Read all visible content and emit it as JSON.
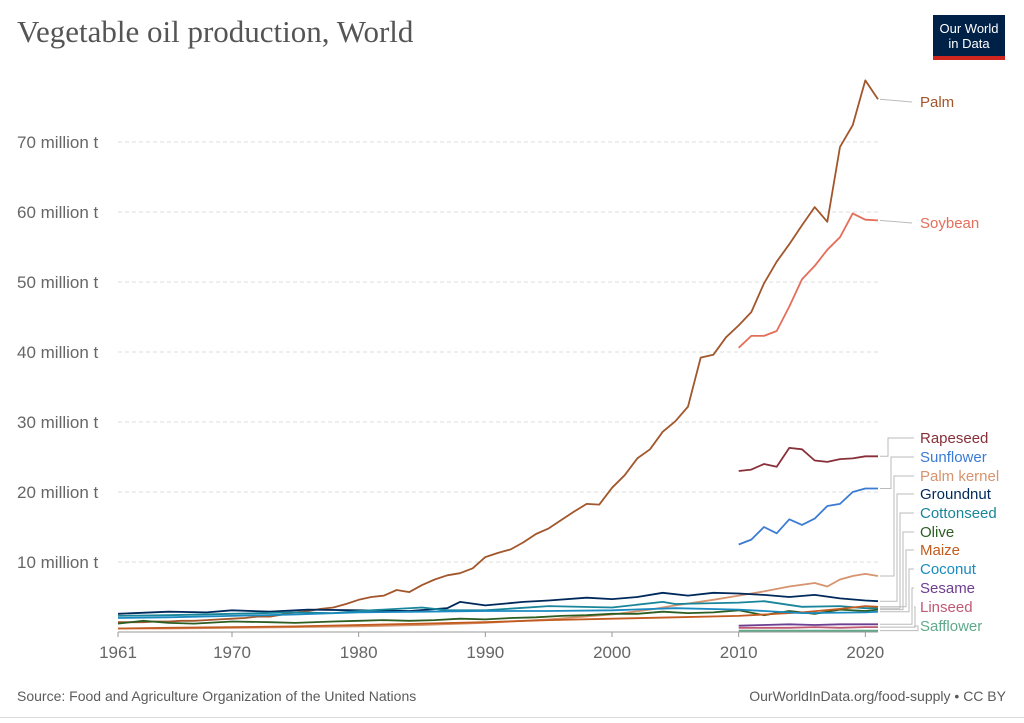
{
  "title": "Vegetable oil production, World",
  "logo": {
    "line1": "Our World",
    "line2": "in Data"
  },
  "source": "Source: Food and Agriculture Organization of the United Nations",
  "credit": "OurWorldInData.org/food-supply • CC BY",
  "chart_data": {
    "type": "line",
    "title": "Vegetable oil production, World",
    "xlim": [
      1961,
      2021
    ],
    "ylim": [
      0,
      80
    ],
    "unit": "million t",
    "x_ticks": [
      1961,
      1970,
      1980,
      1990,
      2000,
      2010,
      2020
    ],
    "y_ticks": [
      {
        "value": 10,
        "label": "10 million t"
      },
      {
        "value": 20,
        "label": "20 million t"
      },
      {
        "value": 30,
        "label": "30 million t"
      },
      {
        "value": 40,
        "label": "40 million t"
      },
      {
        "value": 50,
        "label": "50 million t"
      },
      {
        "value": 60,
        "label": "60 million t"
      },
      {
        "value": 70,
        "label": "70 million t"
      }
    ],
    "grid": true,
    "legend": "right",
    "series": [
      {
        "name": "Palm",
        "color": "#a2562c",
        "x": [
          1961,
          1962,
          1963,
          1964,
          1965,
          1966,
          1967,
          1968,
          1969,
          1970,
          1971,
          1972,
          1973,
          1974,
          1975,
          1976,
          1977,
          1978,
          1979,
          1980,
          1981,
          1982,
          1983,
          1984,
          1985,
          1986,
          1987,
          1988,
          1989,
          1990,
          1991,
          1992,
          1993,
          1994,
          1995,
          1996,
          1997,
          1998,
          1999,
          2000,
          2001,
          2002,
          2003,
          2004,
          2005,
          2006,
          2007,
          2008,
          2009,
          2010,
          2011,
          2012,
          2013,
          2014,
          2015,
          2016,
          2017,
          2018,
          2019,
          2020,
          2021
        ],
        "y": [
          1.4,
          1.4,
          1.4,
          1.5,
          1.5,
          1.6,
          1.6,
          1.7,
          1.8,
          1.9,
          2.0,
          2.2,
          2.2,
          2.5,
          2.8,
          3.0,
          3.3,
          3.5,
          4.0,
          4.6,
          5.0,
          5.2,
          6.0,
          5.7,
          6.7,
          7.5,
          8.1,
          8.4,
          9.1,
          10.7,
          11.3,
          11.8,
          12.8,
          14.0,
          14.8,
          16.0,
          17.2,
          18.3,
          18.2,
          20.6,
          22.4,
          24.8,
          26.1,
          28.6,
          30.1,
          32.2,
          39.2,
          39.6,
          42.1,
          43.8,
          45.7,
          49.8,
          52.9,
          55.4,
          58.1,
          60.7,
          58.6,
          69.3,
          72.4,
          78.8,
          76.1
        ]
      },
      {
        "name": "Soybean",
        "color": "#e56e5a",
        "x": [
          2010,
          2011,
          2012,
          2013,
          2014,
          2015,
          2016,
          2017,
          2018,
          2019,
          2020,
          2021
        ],
        "y": [
          40.6,
          42.3,
          42.3,
          43.0,
          46.5,
          50.4,
          52.3,
          54.6,
          56.4,
          59.8,
          58.9,
          58.8
        ]
      },
      {
        "name": "Rapeseed",
        "color": "#883039",
        "x": [
          2010,
          2011,
          2012,
          2013,
          2014,
          2015,
          2016,
          2017,
          2018,
          2019,
          2020,
          2021
        ],
        "y": [
          23.0,
          23.2,
          24.0,
          23.6,
          26.3,
          26.1,
          24.5,
          24.3,
          24.7,
          24.8,
          25.1,
          25.1
        ]
      },
      {
        "name": "Sunflower",
        "color": "#3a7bd5",
        "x": [
          2010,
          2011,
          2012,
          2013,
          2014,
          2015,
          2016,
          2017,
          2018,
          2019,
          2020,
          2021
        ],
        "y": [
          12.5,
          13.2,
          15.0,
          14.1,
          16.1,
          15.3,
          16.2,
          18.0,
          18.3,
          20.0,
          20.5,
          20.5
        ]
      },
      {
        "name": "Palm kernel",
        "color": "#d6936d",
        "x": [
          1961,
          1965,
          1970,
          1975,
          1980,
          1985,
          1990,
          1995,
          2000,
          2003,
          2005,
          2008,
          2010,
          2012,
          2014,
          2016,
          2017,
          2018,
          2019,
          2020,
          2021
        ],
        "y": [
          0.5,
          0.5,
          0.6,
          0.7,
          0.8,
          1.0,
          1.3,
          1.8,
          2.5,
          3.2,
          3.8,
          4.6,
          5.2,
          5.8,
          6.5,
          7.0,
          6.5,
          7.5,
          8.0,
          8.3,
          8.0
        ]
      },
      {
        "name": "Groundnut",
        "color": "#00295b",
        "x": [
          1961,
          1965,
          1968,
          1970,
          1973,
          1976,
          1980,
          1984,
          1987,
          1988,
          1990,
          1993,
          1995,
          1998,
          2000,
          2002,
          2004,
          2006,
          2008,
          2010,
          2012,
          2014,
          2016,
          2018,
          2020,
          2021
        ],
        "y": [
          2.6,
          2.9,
          2.8,
          3.1,
          2.9,
          3.2,
          3.1,
          3.0,
          3.4,
          4.3,
          3.8,
          4.3,
          4.5,
          4.9,
          4.7,
          5.0,
          5.6,
          5.2,
          5.6,
          5.5,
          5.3,
          5.0,
          5.3,
          4.8,
          4.5,
          4.4
        ]
      },
      {
        "name": "Cottonseed",
        "color": "#18859a",
        "x": [
          1961,
          1965,
          1970,
          1975,
          1978,
          1980,
          1985,
          1987,
          1990,
          1995,
          2000,
          2004,
          2005,
          2010,
          2012,
          2015,
          2018,
          2020,
          2021
        ],
        "y": [
          2.3,
          2.4,
          2.6,
          2.8,
          2.7,
          3.0,
          3.5,
          3.1,
          3.1,
          3.7,
          3.5,
          4.3,
          4.0,
          4.2,
          4.4,
          3.6,
          3.7,
          3.4,
          3.4
        ]
      },
      {
        "name": "Olive",
        "color": "#2c5d21",
        "x": [
          1961,
          1963,
          1965,
          1967,
          1970,
          1973,
          1975,
          1978,
          1980,
          1982,
          1984,
          1986,
          1988,
          1990,
          1992,
          1994,
          1996,
          1998,
          2000,
          2002,
          2004,
          2006,
          2008,
          2010,
          2012,
          2014,
          2016,
          2018,
          2020,
          2021
        ],
        "y": [
          1.2,
          1.6,
          1.3,
          1.2,
          1.5,
          1.4,
          1.3,
          1.5,
          1.6,
          1.7,
          1.6,
          1.7,
          1.9,
          1.8,
          2.0,
          2.1,
          2.3,
          2.4,
          2.6,
          2.6,
          2.9,
          2.7,
          2.8,
          3.1,
          2.4,
          3.0,
          2.6,
          3.2,
          3.0,
          3.2
        ]
      },
      {
        "name": "Maize",
        "color": "#c15b1f",
        "x": [
          1961,
          1965,
          1970,
          1975,
          1980,
          1985,
          1990,
          1995,
          2000,
          2005,
          2010,
          2015,
          2018,
          2020,
          2021
        ],
        "y": [
          0.5,
          0.6,
          0.7,
          0.8,
          1.0,
          1.2,
          1.4,
          1.7,
          1.9,
          2.1,
          2.3,
          2.8,
          3.3,
          3.7,
          3.6
        ]
      },
      {
        "name": "Coconut",
        "color": "#1a8ac0",
        "x": [
          1961,
          1965,
          1970,
          1975,
          1980,
          1985,
          1990,
          1995,
          2000,
          2005,
          2010,
          2015,
          2020,
          2021
        ],
        "y": [
          2.0,
          2.1,
          2.3,
          2.5,
          2.8,
          2.9,
          3.0,
          3.0,
          3.1,
          3.4,
          3.2,
          2.7,
          2.8,
          2.9
        ]
      },
      {
        "name": "Sesame",
        "color": "#6d3e91",
        "x": [
          2010,
          2012,
          2014,
          2016,
          2018,
          2020,
          2021
        ],
        "y": [
          0.9,
          1.0,
          1.1,
          1.0,
          1.1,
          1.1,
          1.1
        ]
      },
      {
        "name": "Linseed",
        "color": "#c05973",
        "x": [
          2010,
          2012,
          2014,
          2016,
          2018,
          2020,
          2021
        ],
        "y": [
          0.6,
          0.6,
          0.6,
          0.7,
          0.6,
          0.7,
          0.7
        ]
      },
      {
        "name": "Safflower",
        "color": "#5eaa8a",
        "x": [
          2010,
          2012,
          2014,
          2016,
          2018,
          2020,
          2021
        ],
        "y": [
          0.2,
          0.2,
          0.2,
          0.2,
          0.2,
          0.2,
          0.2
        ]
      }
    ]
  }
}
